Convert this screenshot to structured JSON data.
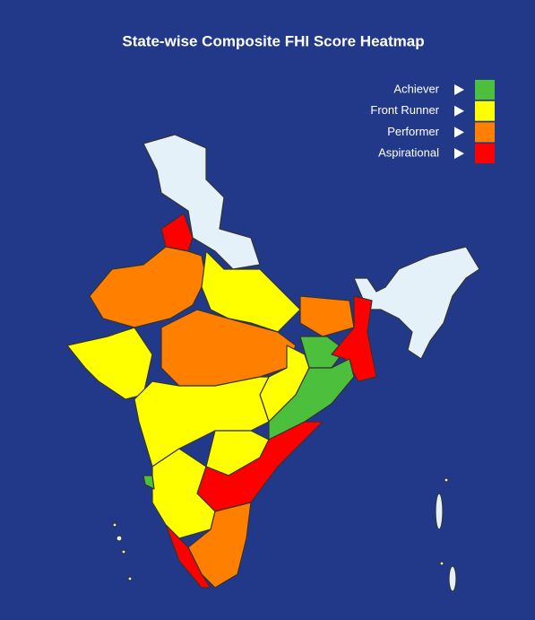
{
  "title": "State-wise Composite FHI Score Heatmap",
  "legend": [
    {
      "label": "Achiever",
      "color": "#4cbf3c"
    },
    {
      "label": "Front Runner",
      "color": "#ffff00"
    },
    {
      "label": "Performer",
      "color": "#ff8000"
    },
    {
      "label": "Aspirational",
      "color": "#ff0000"
    }
  ]
}
